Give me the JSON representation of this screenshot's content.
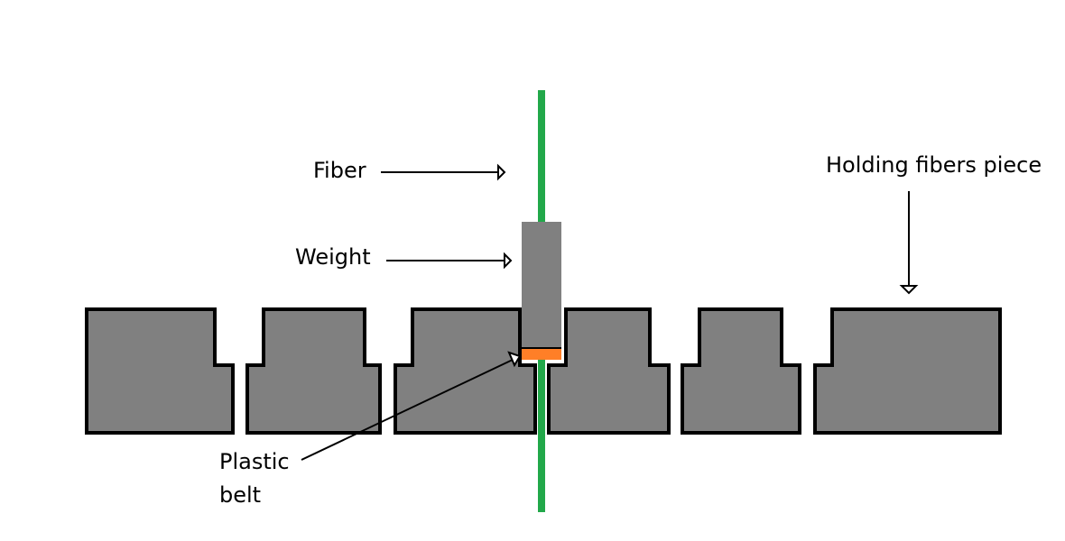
{
  "colors": {
    "background": "#ffffff",
    "block_fill": "#808080",
    "outline": "#000000",
    "fiber": "#22a84a",
    "weight": "#808080",
    "plastic_belt": "#ff7f27"
  },
  "labels": {
    "fiber": "Fiber",
    "weight": "Weight",
    "holding_piece": "Holding fibers piece",
    "plastic_line1": "Plastic",
    "plastic_line2": "belt"
  }
}
